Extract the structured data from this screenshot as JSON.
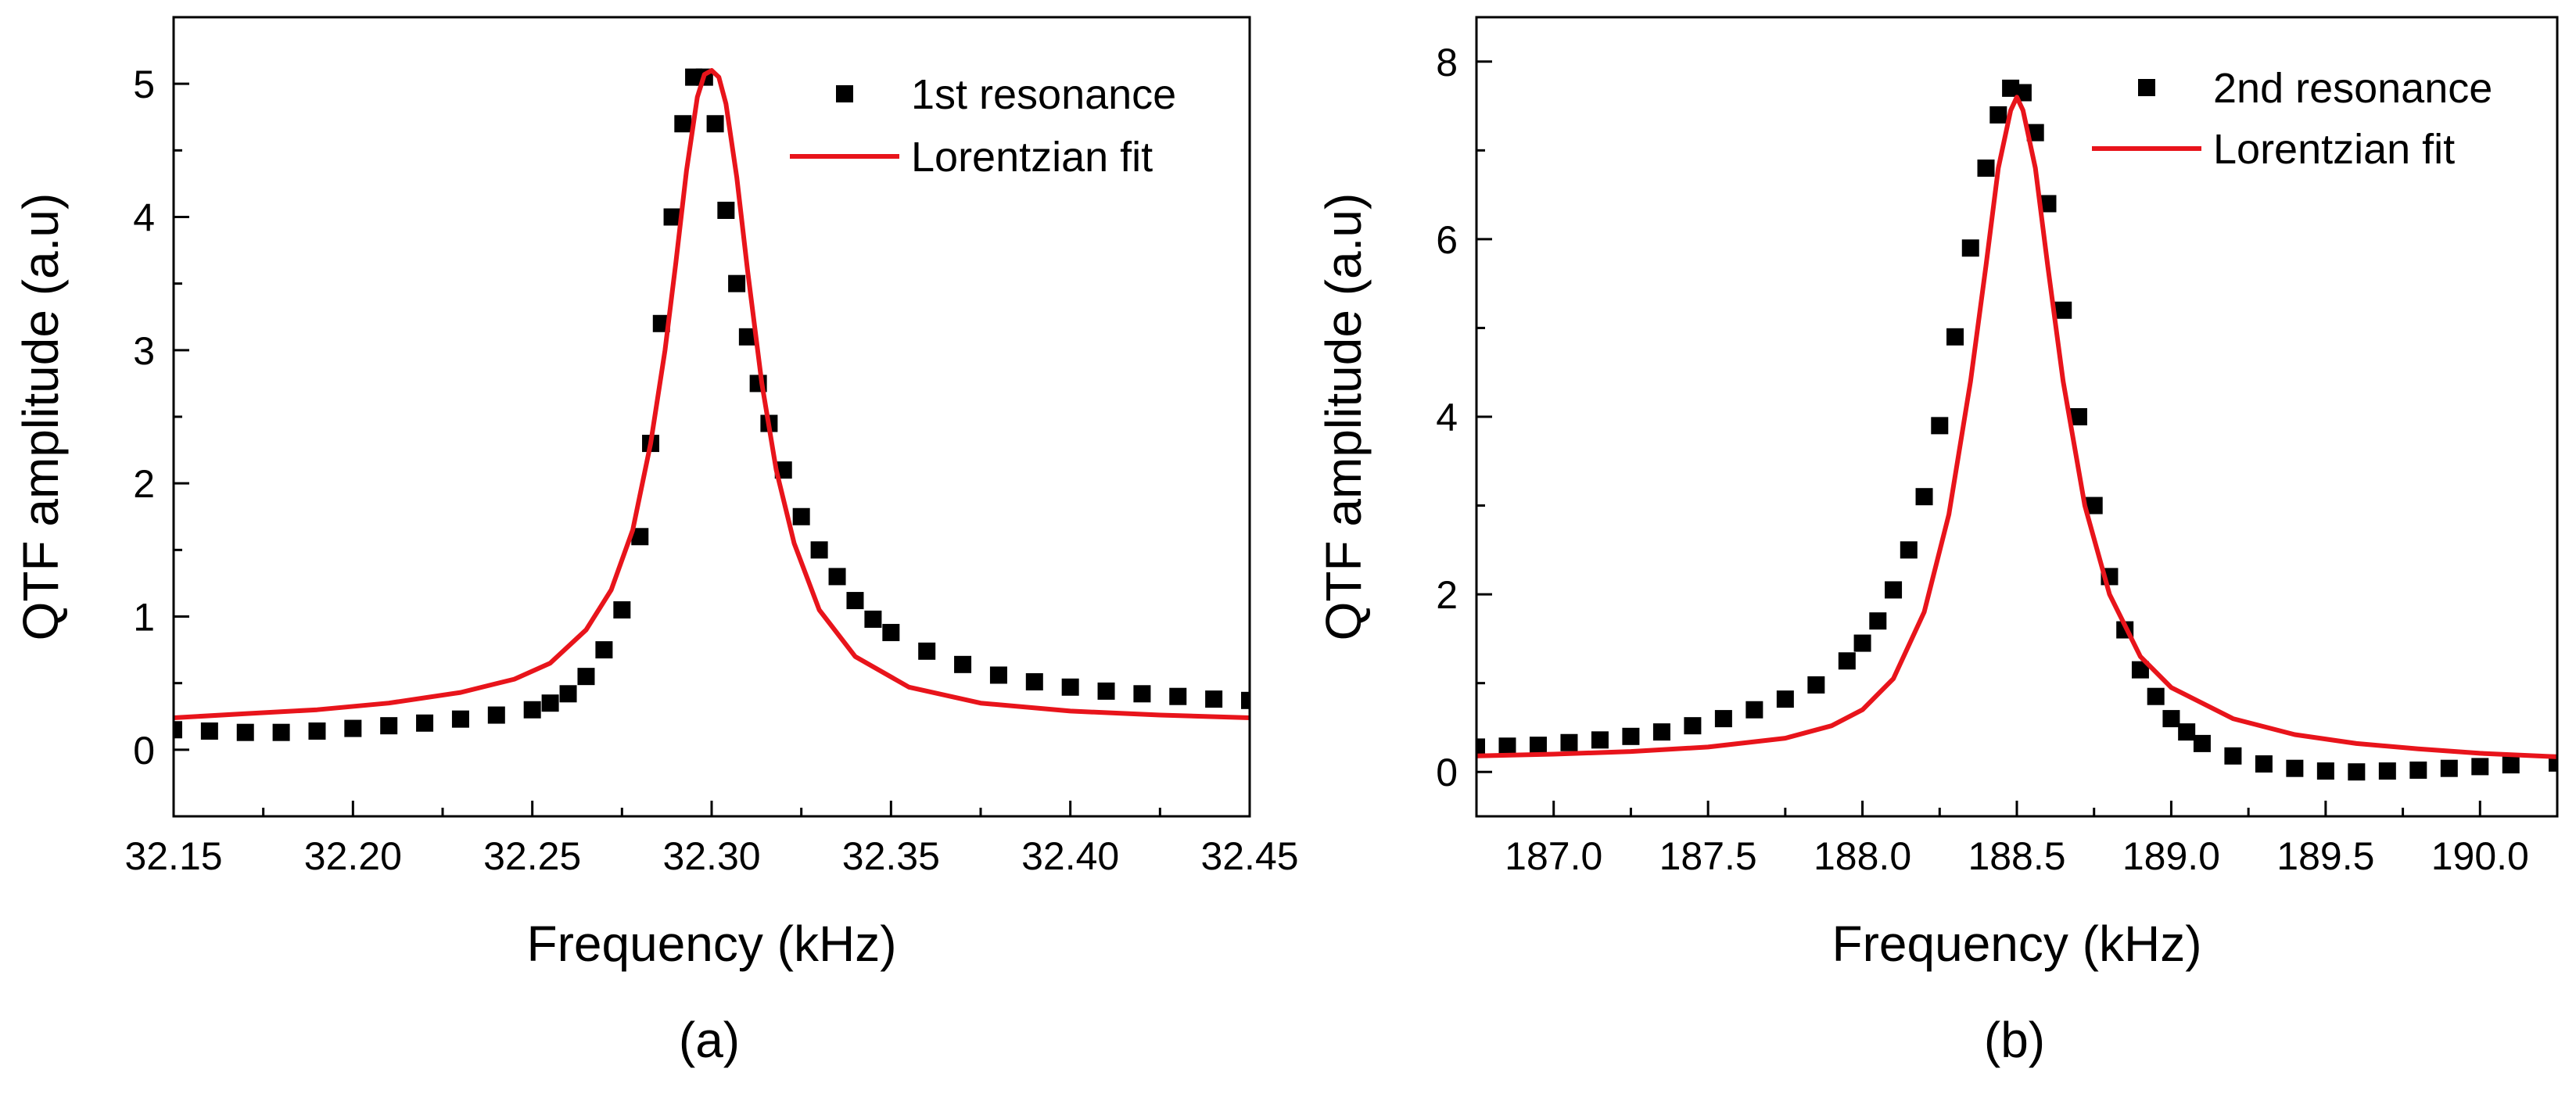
{
  "chart_data": [
    {
      "type": "scatter",
      "panel_label": "(a)",
      "xlabel": "Frequency (kHz)",
      "ylabel": "QTF amplitude (a.u)",
      "xlim": [
        32.15,
        32.45
      ],
      "ylim": [
        -0.5,
        5.5
      ],
      "xticks": [
        32.15,
        32.2,
        32.25,
        32.3,
        32.35,
        32.4,
        32.45
      ],
      "xtick_labels": [
        "32.15",
        "32.20",
        "32.25",
        "32.30",
        "32.35",
        "32.40",
        "32.45"
      ],
      "yticks": [
        0,
        1,
        2,
        3,
        4,
        5
      ],
      "ytick_labels": [
        "0",
        "1",
        "2",
        "3",
        "4",
        "5"
      ],
      "legend_position": "top-right",
      "series": [
        {
          "name": "1st resonance",
          "kind": "markers",
          "marker": "square",
          "color": "#000000",
          "x": [
            32.15,
            32.16,
            32.17,
            32.18,
            32.19,
            32.2,
            32.21,
            32.22,
            32.23,
            32.24,
            32.25,
            32.255,
            32.26,
            32.265,
            32.27,
            32.275,
            32.28,
            32.283,
            32.286,
            32.289,
            32.292,
            32.295,
            32.298,
            32.301,
            32.304,
            32.307,
            32.31,
            32.313,
            32.316,
            32.32,
            32.325,
            32.33,
            32.335,
            32.34,
            32.345,
            32.35,
            32.36,
            32.37,
            32.38,
            32.39,
            32.4,
            32.41,
            32.42,
            32.43,
            32.44,
            32.45
          ],
          "y": [
            0.15,
            0.14,
            0.13,
            0.13,
            0.14,
            0.16,
            0.18,
            0.2,
            0.23,
            0.26,
            0.3,
            0.35,
            0.42,
            0.55,
            0.75,
            1.05,
            1.6,
            2.3,
            3.2,
            4.0,
            4.7,
            5.05,
            5.05,
            4.7,
            4.05,
            3.5,
            3.1,
            2.75,
            2.45,
            2.1,
            1.75,
            1.5,
            1.3,
            1.12,
            0.98,
            0.88,
            0.74,
            0.64,
            0.56,
            0.51,
            0.47,
            0.44,
            0.42,
            0.4,
            0.38,
            0.37
          ]
        },
        {
          "name": "Lorentzian fit",
          "kind": "line",
          "color": "#e8141b",
          "x": [
            32.15,
            32.17,
            32.19,
            32.21,
            32.23,
            32.245,
            32.255,
            32.265,
            32.272,
            32.278,
            32.283,
            32.287,
            32.29,
            32.293,
            32.296,
            32.298,
            32.3,
            32.302,
            32.304,
            32.307,
            32.31,
            32.314,
            32.318,
            32.323,
            32.33,
            32.34,
            32.355,
            32.375,
            32.4,
            32.425,
            32.45
          ],
          "y": [
            0.24,
            0.27,
            0.3,
            0.35,
            0.43,
            0.53,
            0.65,
            0.9,
            1.2,
            1.65,
            2.3,
            3.0,
            3.65,
            4.35,
            4.9,
            5.07,
            5.1,
            5.05,
            4.85,
            4.3,
            3.6,
            2.75,
            2.1,
            1.55,
            1.05,
            0.7,
            0.47,
            0.35,
            0.29,
            0.26,
            0.24
          ]
        }
      ]
    },
    {
      "type": "scatter",
      "panel_label": "(b)",
      "xlabel": "Frequency (kHz)",
      "ylabel": "QTF amplitude (a.u)",
      "xlim": [
        186.75,
        190.25
      ],
      "ylim": [
        -0.5,
        8.5
      ],
      "xticks": [
        187.0,
        187.5,
        188.0,
        188.5,
        189.0,
        189.5,
        190.0
      ],
      "xtick_labels": [
        "187.0",
        "187.5",
        "188.0",
        "188.5",
        "189.0",
        "189.5",
        "190.0"
      ],
      "yticks": [
        0,
        2,
        4,
        6,
        8
      ],
      "ytick_labels": [
        "0",
        "2",
        "4",
        "6",
        "8"
      ],
      "legend_position": "top-right",
      "series": [
        {
          "name": "2nd resonance",
          "kind": "markers",
          "marker": "square",
          "color": "#000000",
          "x": [
            186.75,
            186.85,
            186.95,
            187.05,
            187.15,
            187.25,
            187.35,
            187.45,
            187.55,
            187.65,
            187.75,
            187.85,
            187.95,
            188.0,
            188.05,
            188.1,
            188.15,
            188.2,
            188.25,
            188.3,
            188.35,
            188.4,
            188.44,
            188.48,
            188.52,
            188.56,
            188.6,
            188.65,
            188.7,
            188.75,
            188.8,
            188.85,
            188.9,
            188.95,
            189.0,
            189.05,
            189.1,
            189.2,
            189.3,
            189.4,
            189.5,
            189.6,
            189.7,
            189.8,
            189.9,
            190.0,
            190.1,
            190.25
          ],
          "y": [
            0.28,
            0.29,
            0.3,
            0.33,
            0.36,
            0.4,
            0.45,
            0.52,
            0.6,
            0.7,
            0.82,
            0.98,
            1.25,
            1.45,
            1.7,
            2.05,
            2.5,
            3.1,
            3.9,
            4.9,
            5.9,
            6.8,
            7.4,
            7.7,
            7.65,
            7.2,
            6.4,
            5.2,
            4.0,
            3.0,
            2.2,
            1.6,
            1.15,
            0.85,
            0.6,
            0.45,
            0.32,
            0.18,
            0.09,
            0.04,
            0.01,
            0.0,
            0.01,
            0.02,
            0.04,
            0.06,
            0.08,
            0.1
          ]
        },
        {
          "name": "Lorentzian fit",
          "kind": "line",
          "color": "#e8141b",
          "x": [
            186.75,
            187.0,
            187.25,
            187.5,
            187.75,
            187.9,
            188.0,
            188.1,
            188.2,
            188.28,
            188.35,
            188.4,
            188.44,
            188.48,
            188.5,
            188.52,
            188.56,
            188.6,
            188.65,
            188.72,
            188.8,
            188.9,
            189.0,
            189.2,
            189.4,
            189.6,
            189.8,
            190.0,
            190.25
          ],
          "y": [
            0.18,
            0.2,
            0.23,
            0.28,
            0.38,
            0.52,
            0.7,
            1.05,
            1.8,
            2.9,
            4.4,
            5.7,
            6.8,
            7.45,
            7.6,
            7.45,
            6.8,
            5.7,
            4.4,
            3.0,
            2.0,
            1.3,
            0.95,
            0.6,
            0.42,
            0.32,
            0.26,
            0.21,
            0.17
          ]
        }
      ]
    }
  ]
}
